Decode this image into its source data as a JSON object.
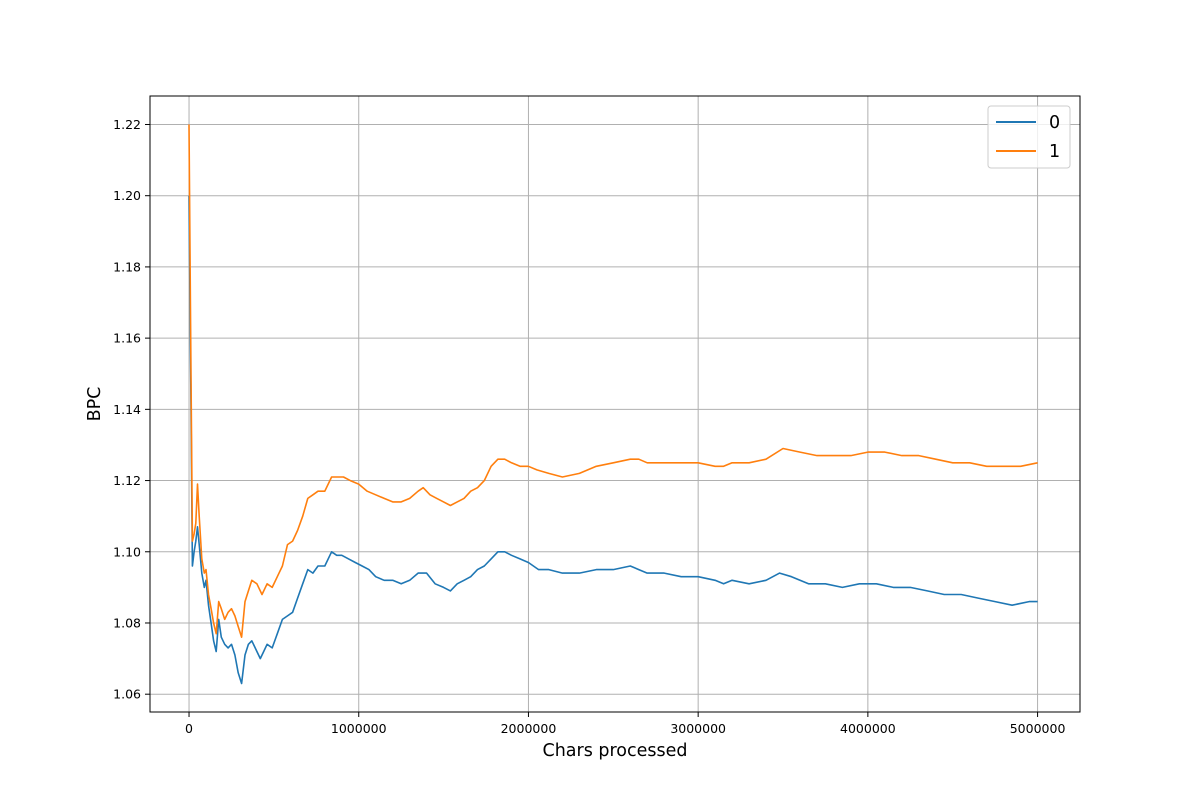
{
  "chart_data": {
    "type": "line",
    "title": "",
    "xlabel": "Chars processed",
    "ylabel": "BPC",
    "xlim": [
      -230000,
      5250000
    ],
    "ylim": [
      1.055,
      1.228
    ],
    "grid": true,
    "legend_position": "top-right",
    "x_ticks": [
      0,
      1000000,
      2000000,
      3000000,
      4000000,
      5000000
    ],
    "x_tick_labels": [
      "0",
      "1000000",
      "2000000",
      "3000000",
      "4000000",
      "5000000"
    ],
    "y_ticks": [
      1.06,
      1.08,
      1.1,
      1.12,
      1.14,
      1.16,
      1.18,
      1.2,
      1.22
    ],
    "y_tick_labels": [
      "1.06",
      "1.08",
      "1.10",
      "1.12",
      "1.14",
      "1.16",
      "1.18",
      "1.20",
      "1.22"
    ],
    "series": [
      {
        "name": "0",
        "color": "#1f77b4",
        "points": [
          [
            0,
            1.2
          ],
          [
            10000,
            1.15
          ],
          [
            20000,
            1.096
          ],
          [
            30000,
            1.1
          ],
          [
            40000,
            1.103
          ],
          [
            50000,
            1.107
          ],
          [
            60000,
            1.102
          ],
          [
            75000,
            1.094
          ],
          [
            90000,
            1.09
          ],
          [
            100000,
            1.092
          ],
          [
            115000,
            1.085
          ],
          [
            130000,
            1.08
          ],
          [
            145000,
            1.075
          ],
          [
            160000,
            1.072
          ],
          [
            175000,
            1.081
          ],
          [
            190000,
            1.076
          ],
          [
            210000,
            1.074
          ],
          [
            230000,
            1.073
          ],
          [
            250000,
            1.074
          ],
          [
            270000,
            1.071
          ],
          [
            290000,
            1.066
          ],
          [
            310000,
            1.063
          ],
          [
            330000,
            1.071
          ],
          [
            350000,
            1.074
          ],
          [
            370000,
            1.075
          ],
          [
            400000,
            1.072
          ],
          [
            420000,
            1.07
          ],
          [
            440000,
            1.072
          ],
          [
            460000,
            1.074
          ],
          [
            490000,
            1.073
          ],
          [
            520000,
            1.077
          ],
          [
            550000,
            1.081
          ],
          [
            580000,
            1.082
          ],
          [
            610000,
            1.083
          ],
          [
            640000,
            1.087
          ],
          [
            670000,
            1.091
          ],
          [
            700000,
            1.095
          ],
          [
            730000,
            1.094
          ],
          [
            760000,
            1.096
          ],
          [
            800000,
            1.096
          ],
          [
            840000,
            1.1
          ],
          [
            870000,
            1.099
          ],
          [
            900000,
            1.099
          ],
          [
            940000,
            1.098
          ],
          [
            980000,
            1.097
          ],
          [
            1020000,
            1.096
          ],
          [
            1060000,
            1.095
          ],
          [
            1100000,
            1.093
          ],
          [
            1150000,
            1.092
          ],
          [
            1200000,
            1.092
          ],
          [
            1250000,
            1.091
          ],
          [
            1300000,
            1.092
          ],
          [
            1350000,
            1.094
          ],
          [
            1400000,
            1.094
          ],
          [
            1450000,
            1.091
          ],
          [
            1500000,
            1.09
          ],
          [
            1540000,
            1.089
          ],
          [
            1580000,
            1.091
          ],
          [
            1620000,
            1.092
          ],
          [
            1660000,
            1.093
          ],
          [
            1700000,
            1.095
          ],
          [
            1740000,
            1.096
          ],
          [
            1780000,
            1.098
          ],
          [
            1820000,
            1.1
          ],
          [
            1860000,
            1.1
          ],
          [
            1900000,
            1.099
          ],
          [
            1950000,
            1.098
          ],
          [
            2000000,
            1.097
          ],
          [
            2060000,
            1.095
          ],
          [
            2120000,
            1.095
          ],
          [
            2200000,
            1.094
          ],
          [
            2300000,
            1.094
          ],
          [
            2400000,
            1.095
          ],
          [
            2500000,
            1.095
          ],
          [
            2600000,
            1.096
          ],
          [
            2650000,
            1.095
          ],
          [
            2700000,
            1.094
          ],
          [
            2800000,
            1.094
          ],
          [
            2900000,
            1.093
          ],
          [
            3000000,
            1.093
          ],
          [
            3100000,
            1.092
          ],
          [
            3150000,
            1.091
          ],
          [
            3200000,
            1.092
          ],
          [
            3300000,
            1.091
          ],
          [
            3400000,
            1.092
          ],
          [
            3480000,
            1.094
          ],
          [
            3550000,
            1.093
          ],
          [
            3650000,
            1.091
          ],
          [
            3750000,
            1.091
          ],
          [
            3850000,
            1.09
          ],
          [
            3950000,
            1.091
          ],
          [
            4050000,
            1.091
          ],
          [
            4150000,
            1.09
          ],
          [
            4250000,
            1.09
          ],
          [
            4350000,
            1.089
          ],
          [
            4450000,
            1.088
          ],
          [
            4550000,
            1.088
          ],
          [
            4650000,
            1.087
          ],
          [
            4750000,
            1.086
          ],
          [
            4850000,
            1.085
          ],
          [
            4950000,
            1.086
          ],
          [
            5000000,
            1.086
          ]
        ]
      },
      {
        "name": "1",
        "color": "#ff7f0e",
        "points": [
          [
            0,
            1.22
          ],
          [
            10000,
            1.16
          ],
          [
            20000,
            1.103
          ],
          [
            30000,
            1.105
          ],
          [
            40000,
            1.108
          ],
          [
            50000,
            1.119
          ],
          [
            60000,
            1.11
          ],
          [
            75000,
            1.098
          ],
          [
            90000,
            1.094
          ],
          [
            100000,
            1.095
          ],
          [
            115000,
            1.088
          ],
          [
            130000,
            1.084
          ],
          [
            145000,
            1.08
          ],
          [
            160000,
            1.077
          ],
          [
            175000,
            1.086
          ],
          [
            190000,
            1.084
          ],
          [
            210000,
            1.081
          ],
          [
            230000,
            1.083
          ],
          [
            250000,
            1.084
          ],
          [
            270000,
            1.082
          ],
          [
            290000,
            1.079
          ],
          [
            310000,
            1.076
          ],
          [
            330000,
            1.086
          ],
          [
            350000,
            1.089
          ],
          [
            370000,
            1.092
          ],
          [
            400000,
            1.091
          ],
          [
            430000,
            1.088
          ],
          [
            460000,
            1.091
          ],
          [
            490000,
            1.09
          ],
          [
            520000,
            1.093
          ],
          [
            550000,
            1.096
          ],
          [
            580000,
            1.102
          ],
          [
            610000,
            1.103
          ],
          [
            640000,
            1.106
          ],
          [
            670000,
            1.11
          ],
          [
            700000,
            1.115
          ],
          [
            730000,
            1.116
          ],
          [
            760000,
            1.117
          ],
          [
            800000,
            1.117
          ],
          [
            840000,
            1.121
          ],
          [
            880000,
            1.121
          ],
          [
            910000,
            1.121
          ],
          [
            950000,
            1.12
          ],
          [
            1000000,
            1.119
          ],
          [
            1050000,
            1.117
          ],
          [
            1100000,
            1.116
          ],
          [
            1150000,
            1.115
          ],
          [
            1200000,
            1.114
          ],
          [
            1250000,
            1.114
          ],
          [
            1300000,
            1.115
          ],
          [
            1350000,
            1.117
          ],
          [
            1380000,
            1.118
          ],
          [
            1420000,
            1.116
          ],
          [
            1460000,
            1.115
          ],
          [
            1500000,
            1.114
          ],
          [
            1540000,
            1.113
          ],
          [
            1580000,
            1.114
          ],
          [
            1620000,
            1.115
          ],
          [
            1660000,
            1.117
          ],
          [
            1700000,
            1.118
          ],
          [
            1740000,
            1.12
          ],
          [
            1780000,
            1.124
          ],
          [
            1820000,
            1.126
          ],
          [
            1860000,
            1.126
          ],
          [
            1900000,
            1.125
          ],
          [
            1950000,
            1.124
          ],
          [
            2000000,
            1.124
          ],
          [
            2050000,
            1.123
          ],
          [
            2120000,
            1.122
          ],
          [
            2200000,
            1.121
          ],
          [
            2300000,
            1.122
          ],
          [
            2400000,
            1.124
          ],
          [
            2500000,
            1.125
          ],
          [
            2600000,
            1.126
          ],
          [
            2650000,
            1.126
          ],
          [
            2700000,
            1.125
          ],
          [
            2800000,
            1.125
          ],
          [
            2900000,
            1.125
          ],
          [
            3000000,
            1.125
          ],
          [
            3100000,
            1.124
          ],
          [
            3150000,
            1.124
          ],
          [
            3200000,
            1.125
          ],
          [
            3300000,
            1.125
          ],
          [
            3400000,
            1.126
          ],
          [
            3500000,
            1.129
          ],
          [
            3600000,
            1.128
          ],
          [
            3700000,
            1.127
          ],
          [
            3800000,
            1.127
          ],
          [
            3900000,
            1.127
          ],
          [
            4000000,
            1.128
          ],
          [
            4100000,
            1.128
          ],
          [
            4200000,
            1.127
          ],
          [
            4300000,
            1.127
          ],
          [
            4400000,
            1.126
          ],
          [
            4500000,
            1.125
          ],
          [
            4600000,
            1.125
          ],
          [
            4700000,
            1.124
          ],
          [
            4800000,
            1.124
          ],
          [
            4900000,
            1.124
          ],
          [
            5000000,
            1.125
          ]
        ]
      }
    ]
  }
}
